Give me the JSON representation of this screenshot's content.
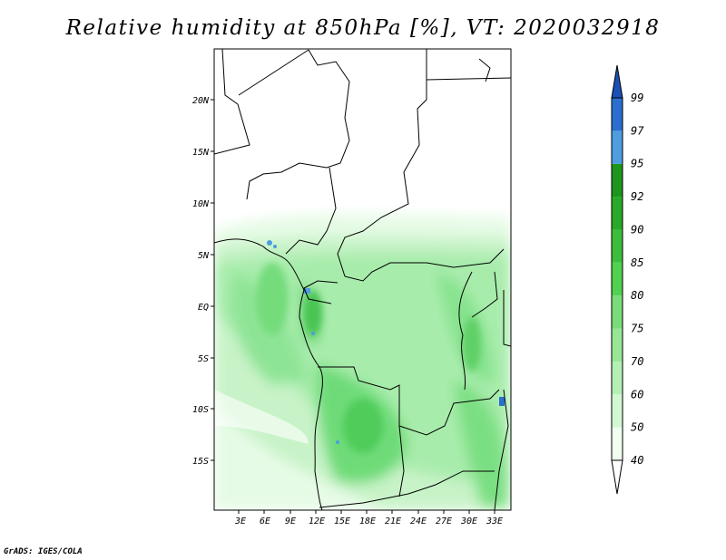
{
  "title": "Relative humidity at 850hPa [%], VT: 2020032918",
  "credit": "GrADS: IGES/COLA",
  "map": {
    "lat_labels": [
      "20N",
      "15N",
      "10N",
      "5N",
      "EQ",
      "5S",
      "10S",
      "15S"
    ],
    "lon_labels": [
      "3E",
      "6E",
      "9E",
      "12E",
      "15E",
      "18E",
      "21E",
      "24E",
      "27E",
      "30E",
      "33E"
    ]
  },
  "colorbar": {
    "levels": [
      "40",
      "50",
      "60",
      "70",
      "75",
      "80",
      "85",
      "90",
      "92",
      "95",
      "97",
      "99"
    ],
    "colors": [
      "#f0fff0",
      "#d2f8d2",
      "#b4f0b4",
      "#96e696",
      "#78dc78",
      "#50d250",
      "#3cbe3c",
      "#28aa28",
      "#1e961e",
      "#4d9de0",
      "#2a6fcf",
      "#1a4fb8"
    ]
  }
}
